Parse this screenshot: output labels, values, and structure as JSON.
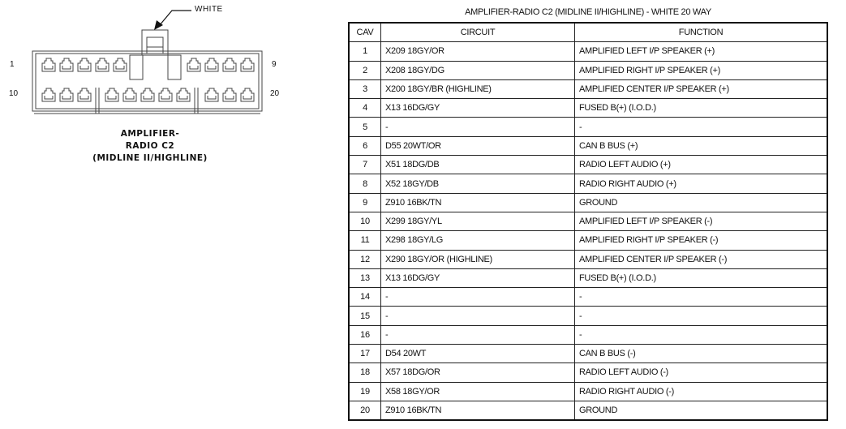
{
  "connector": {
    "color_label": "WHITE",
    "pin_labels": {
      "top_left": "1",
      "top_right": "9",
      "bottom_left": "10",
      "bottom_right": "20"
    },
    "title_lines": [
      "AMPLIFIER-",
      "RADIO C2",
      "(MIDLINE II/HIGHLINE)"
    ]
  },
  "table": {
    "title": "AMPLIFIER-RADIO C2 (MIDLINE II/HIGHLINE) - WHITE 20 WAY",
    "headers": [
      "CAV",
      "CIRCUIT",
      "FUNCTION"
    ],
    "rows": [
      {
        "cav": "1",
        "circuit": "X209 18GY/OR",
        "function": "AMPLIFIED LEFT I/P SPEAKER (+)"
      },
      {
        "cav": "2",
        "circuit": "X208 18GY/DG",
        "function": "AMPLIFIED RIGHT I/P SPEAKER (+)"
      },
      {
        "cav": "3",
        "circuit": "X200 18GY/BR (HIGHLINE)",
        "function": "AMPLIFIED CENTER I/P SPEAKER (+)"
      },
      {
        "cav": "4",
        "circuit": "X13 16DG/GY",
        "function": "FUSED B(+) (I.O.D.)"
      },
      {
        "cav": "5",
        "circuit": "-",
        "function": "-"
      },
      {
        "cav": "6",
        "circuit": "D55 20WT/OR",
        "function": "CAN B BUS (+)"
      },
      {
        "cav": "7",
        "circuit": "X51 18DG/DB",
        "function": "RADIO LEFT AUDIO (+)"
      },
      {
        "cav": "8",
        "circuit": "X52 18GY/DB",
        "function": "RADIO RIGHT AUDIO (+)"
      },
      {
        "cav": "9",
        "circuit": "Z910 16BK/TN",
        "function": "GROUND"
      },
      {
        "cav": "10",
        "circuit": "X299 18GY/YL",
        "function": "AMPLIFIED LEFT I/P SPEAKER (-)"
      },
      {
        "cav": "11",
        "circuit": "X298 18GY/LG",
        "function": "AMPLIFIED RIGHT I/P SPEAKER (-)"
      },
      {
        "cav": "12",
        "circuit": "X290 18GY/OR (HIGHLINE)",
        "function": "AMPLIFIED CENTER I/P SPEAKER (-)"
      },
      {
        "cav": "13",
        "circuit": "X13 16DG/GY",
        "function": "FUSED B(+) (I.O.D.)"
      },
      {
        "cav": "14",
        "circuit": "-",
        "function": "-"
      },
      {
        "cav": "15",
        "circuit": "-",
        "function": "-"
      },
      {
        "cav": "16",
        "circuit": "-",
        "function": "-"
      },
      {
        "cav": "17",
        "circuit": "D54 20WT",
        "function": "CAN B BUS (-)"
      },
      {
        "cav": "18",
        "circuit": "X57 18DG/OR",
        "function": "RADIO LEFT AUDIO (-)"
      },
      {
        "cav": "19",
        "circuit": "X58 18GY/OR",
        "function": "RADIO RIGHT AUDIO (-)"
      },
      {
        "cav": "20",
        "circuit": "Z910 16BK/TN",
        "function": "GROUND"
      }
    ]
  }
}
